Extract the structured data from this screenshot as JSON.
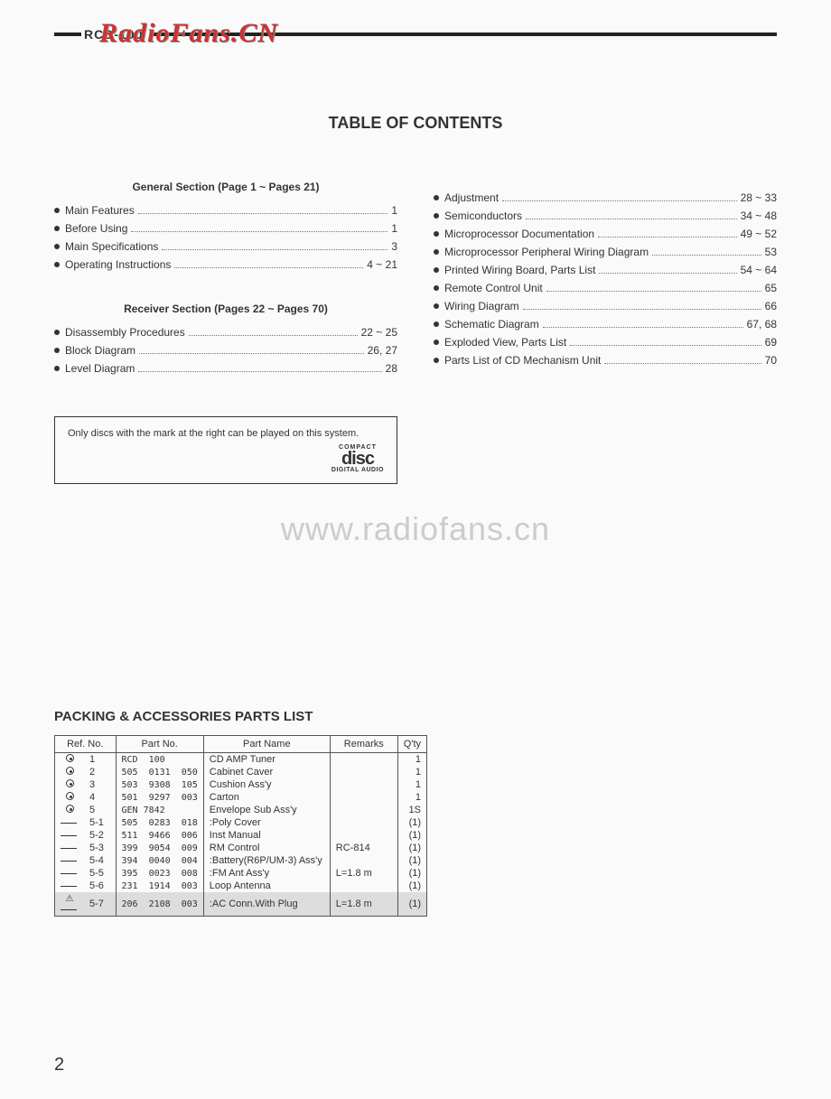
{
  "header": {
    "model": "RCD-100",
    "watermark_top": "RadioFans.CN"
  },
  "title": "TABLE OF CONTENTS",
  "toc_left": {
    "section1_header": "General Section (Page 1 ~ Pages 21)",
    "section1_items": [
      {
        "label": "Main Features",
        "page": "1"
      },
      {
        "label": "Before Using",
        "page": "1"
      },
      {
        "label": "Main Specifications",
        "page": "3"
      },
      {
        "label": "Operating Instructions",
        "page": "4 ~ 21"
      }
    ],
    "section2_header": "Receiver Section (Pages 22 ~ Pages 70)",
    "section2_items": [
      {
        "label": "Disassembly Procedures",
        "page": "22 ~ 25"
      },
      {
        "label": "Block Diagram",
        "page": "26, 27"
      },
      {
        "label": "Level Diagram",
        "page": "28"
      }
    ]
  },
  "toc_right": {
    "items": [
      {
        "label": "Adjustment",
        "page": "28 ~ 33"
      },
      {
        "label": "Semiconductors",
        "page": "34 ~ 48"
      },
      {
        "label": "Microprocessor Documentation",
        "page": "49 ~ 52"
      },
      {
        "label": "Microprocessor Peripheral Wiring Diagram",
        "page": "53"
      },
      {
        "label": "Printed Wiring Board, Parts List",
        "page": "54 ~ 64"
      },
      {
        "label": "Remote Control Unit",
        "page": "65"
      },
      {
        "label": "Wiring Diagram",
        "page": "66"
      },
      {
        "label": "Schematic Diagram",
        "page": "67, 68"
      },
      {
        "label": "Exploded View, Parts List",
        "page": "69"
      },
      {
        "label": "Parts List of CD Mechanism Unit",
        "page": "70"
      }
    ]
  },
  "note": {
    "text": "Only discs with the mark at the right can be played on this system.",
    "logo_top": "COMPACT",
    "logo_mid": "disc",
    "logo_bot": "DIGITAL AUDIO"
  },
  "watermark_mid": "www.radiofans.cn",
  "parts_list": {
    "title": "PACKING & ACCESSORIES PARTS LIST",
    "columns": [
      "Ref. No.",
      "Part No.",
      "Part Name",
      "Remarks",
      "Q'ty"
    ],
    "rows": [
      {
        "mark": "target",
        "ref": "1",
        "part": "RCD  100",
        "name": "CD AMP Tuner",
        "rem": "",
        "qty": "1"
      },
      {
        "mark": "target",
        "ref": "2",
        "part": "505  0131  050",
        "name": "Cabinet Caver",
        "rem": "",
        "qty": "1"
      },
      {
        "mark": "target",
        "ref": "3",
        "part": "503  9308  105",
        "name": "Cushion Ass'y",
        "rem": "",
        "qty": "1"
      },
      {
        "mark": "target",
        "ref": "4",
        "part": "501  9297  003",
        "name": "Carton",
        "rem": "",
        "qty": "1"
      },
      {
        "mark": "target",
        "ref": "5",
        "part": "GEN 7842",
        "name": "Envelope Sub Ass'y",
        "rem": "",
        "qty": "1S"
      },
      {
        "mark": "sub",
        "ref": "5-1",
        "part": "505  0283  018",
        "name": ":Poly Cover",
        "rem": "",
        "qty": "(1)"
      },
      {
        "mark": "sub",
        "ref": "5-2",
        "part": "511  9466  006",
        "name": "Inst Manual",
        "rem": "",
        "qty": "(1)"
      },
      {
        "mark": "sub",
        "ref": "5-3",
        "part": "399  9054  009",
        "name": "RM Control",
        "rem": "RC-814",
        "qty": "(1)"
      },
      {
        "mark": "sub",
        "ref": "5-4",
        "part": "394  0040  004",
        "name": ":Battery(R6P/UM-3) Ass'y",
        "rem": "",
        "qty": "(1)"
      },
      {
        "mark": "sub",
        "ref": "5-5",
        "part": "395  0023  008",
        "name": ":FM Ant Ass'y",
        "rem": "L=1.8 m",
        "qty": "(1)"
      },
      {
        "mark": "sub",
        "ref": "5-6",
        "part": "231  1914  003",
        "name": "Loop Antenna",
        "rem": "",
        "qty": "(1)"
      },
      {
        "mark": "tri",
        "ref": "5-7",
        "part": "206  2108  003",
        "name": ":AC Conn.With Plug",
        "rem": "L=1.8 m",
        "qty": "(1)",
        "shaded": true
      }
    ]
  },
  "page_number": "2"
}
